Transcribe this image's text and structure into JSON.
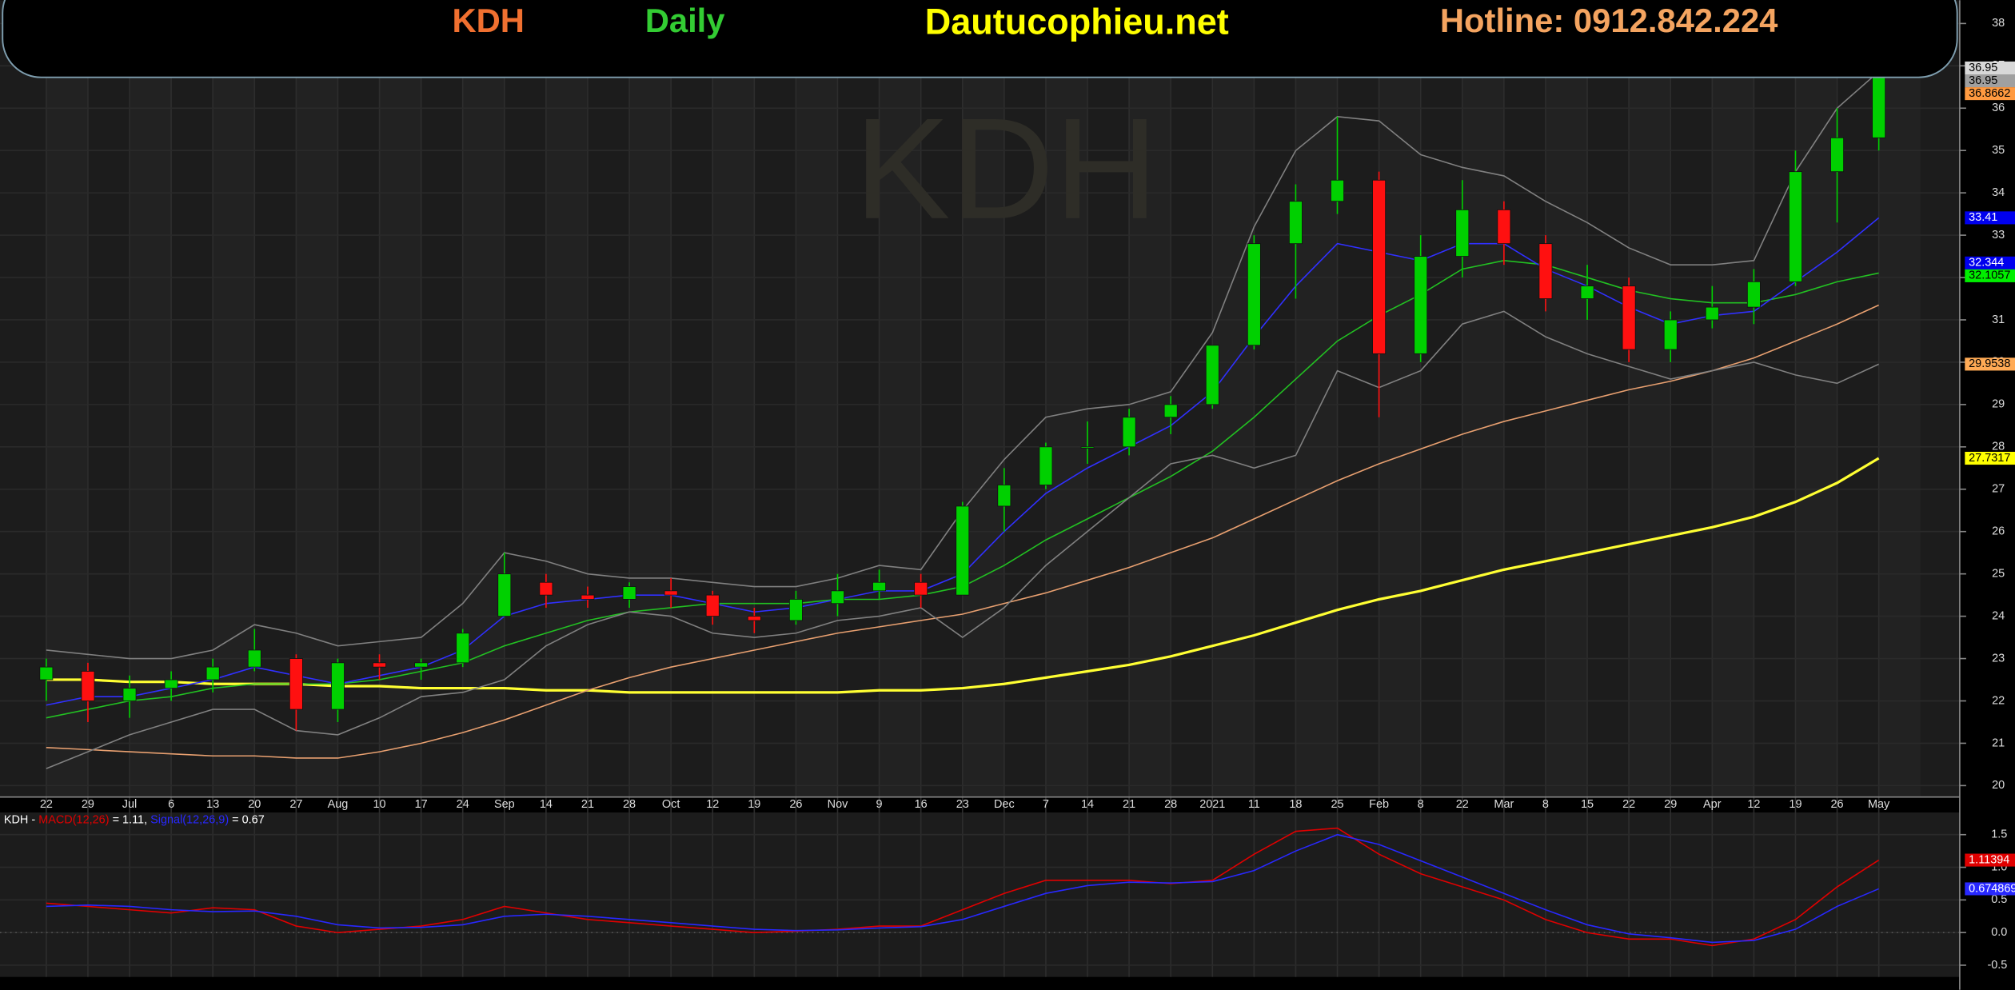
{
  "header": [
    "KDH",
    "Daily",
    "Dautucophieu.net",
    "Hotline: 0912.842.224"
  ],
  "chart_data": [
    {
      "type": "candlestick",
      "watermark": "KDH",
      "categories": [
        "22",
        "29",
        "Jul",
        "6",
        "13",
        "20",
        "27",
        "Aug",
        "10",
        "17",
        "24",
        "Sep",
        "14",
        "21",
        "28",
        "Oct",
        "12",
        "19",
        "26",
        "Nov",
        "9",
        "16",
        "23",
        "Dec",
        "7",
        "14",
        "21",
        "28",
        "2021",
        "11",
        "18",
        "25",
        "Feb",
        "8",
        "22",
        "Mar",
        "8",
        "15",
        "22",
        "29",
        "Apr",
        "12",
        "19",
        "26",
        "May"
      ],
      "open": [
        22.5,
        22.7,
        22.0,
        22.3,
        22.5,
        22.8,
        23.0,
        21.8,
        22.9,
        22.8,
        22.9,
        24.0,
        24.8,
        24.5,
        24.4,
        24.6,
        24.5,
        24.0,
        23.9,
        24.3,
        24.6,
        24.8,
        24.5,
        26.6,
        27.1,
        28.0,
        28.0,
        28.7,
        29.0,
        30.4,
        32.8,
        33.8,
        34.3,
        30.2,
        32.5,
        33.6,
        32.8,
        31.5,
        31.8,
        30.3,
        31.0,
        31.3,
        31.9,
        34.5,
        35.3
      ],
      "high": [
        23.0,
        22.9,
        22.6,
        22.7,
        23.0,
        23.7,
        23.1,
        23.0,
        23.1,
        23.0,
        23.7,
        25.5,
        25.0,
        24.7,
        24.8,
        24.9,
        24.6,
        24.2,
        24.6,
        25.0,
        25.1,
        25.0,
        26.7,
        27.5,
        28.1,
        28.6,
        28.9,
        29.2,
        30.4,
        33.0,
        34.2,
        35.8,
        34.5,
        33.0,
        34.3,
        33.8,
        33.0,
        32.3,
        32.0,
        31.2,
        31.8,
        32.2,
        35.0,
        36.0,
        37.5
      ],
      "low": [
        22.0,
        21.5,
        21.6,
        22.0,
        22.2,
        22.7,
        21.3,
        21.5,
        22.5,
        22.5,
        22.8,
        24.0,
        24.2,
        24.2,
        24.2,
        24.2,
        23.8,
        23.6,
        23.8,
        24.0,
        24.4,
        24.2,
        24.5,
        26.0,
        27.0,
        27.6,
        27.8,
        28.3,
        28.9,
        30.3,
        31.5,
        33.5,
        28.7,
        30.0,
        32.0,
        32.3,
        31.2,
        31.0,
        30.0,
        30.0,
        30.8,
        30.9,
        31.8,
        33.3,
        35.0
      ],
      "close": [
        22.8,
        22.0,
        22.3,
        22.5,
        22.8,
        23.2,
        21.8,
        22.9,
        22.8,
        22.9,
        23.6,
        25.0,
        24.5,
        24.4,
        24.7,
        24.5,
        24.0,
        23.9,
        24.4,
        24.6,
        24.8,
        24.5,
        26.6,
        27.1,
        28.0,
        28.0,
        28.7,
        29.0,
        30.4,
        32.8,
        33.8,
        34.3,
        30.2,
        32.5,
        33.6,
        32.8,
        31.5,
        31.8,
        30.3,
        31.0,
        31.3,
        31.9,
        34.5,
        35.3,
        36.95
      ],
      "up_color": "#00d000",
      "down_color": "#ff1010",
      "series": [
        {
          "color": "#ffff33",
          "values": [
            22.5,
            22.5,
            22.45,
            22.45,
            22.4,
            22.4,
            22.4,
            22.35,
            22.35,
            22.3,
            22.3,
            22.3,
            22.25,
            22.25,
            22.2,
            22.2,
            22.2,
            22.2,
            22.2,
            22.2,
            22.25,
            22.25,
            22.3,
            22.4,
            22.55,
            22.7,
            22.85,
            23.05,
            23.3,
            23.55,
            23.85,
            24.15,
            24.4,
            24.6,
            24.85,
            25.1,
            25.3,
            25.5,
            25.7,
            25.9,
            26.1,
            26.35,
            26.7,
            27.15,
            27.7317
          ]
        },
        {
          "color": "#e8a070",
          "values": [
            20.9,
            20.85,
            20.8,
            20.75,
            20.7,
            20.7,
            20.65,
            20.65,
            20.8,
            21.0,
            21.25,
            21.55,
            21.9,
            22.25,
            22.55,
            22.8,
            23.0,
            23.2,
            23.4,
            23.6,
            23.75,
            23.9,
            24.05,
            24.3,
            24.55,
            24.85,
            25.15,
            25.5,
            25.85,
            26.3,
            26.75,
            27.2,
            27.6,
            27.95,
            28.3,
            28.6,
            28.85,
            29.1,
            29.35,
            29.55,
            29.8,
            30.1,
            30.5,
            30.9,
            31.35
          ]
        },
        {
          "color": "#22c022",
          "values": [
            21.6,
            21.8,
            22.0,
            22.1,
            22.3,
            22.4,
            22.4,
            22.4,
            22.5,
            22.7,
            22.9,
            23.3,
            23.6,
            23.9,
            24.1,
            24.2,
            24.3,
            24.3,
            24.3,
            24.4,
            24.4,
            24.5,
            24.7,
            25.2,
            25.8,
            26.3,
            26.8,
            27.3,
            27.9,
            28.7,
            29.6,
            30.5,
            31.1,
            31.6,
            32.2,
            32.4,
            32.3,
            32.0,
            31.7,
            31.5,
            31.4,
            31.4,
            31.6,
            31.9,
            32.1057
          ]
        },
        {
          "color": "#3030ff",
          "values": [
            21.9,
            22.1,
            22.1,
            22.3,
            22.5,
            22.8,
            22.6,
            22.4,
            22.6,
            22.8,
            23.2,
            24.0,
            24.3,
            24.4,
            24.5,
            24.5,
            24.3,
            24.1,
            24.2,
            24.4,
            24.6,
            24.6,
            25.0,
            26.0,
            26.9,
            27.5,
            28.0,
            28.5,
            29.3,
            30.6,
            31.8,
            32.8,
            32.6,
            32.4,
            32.8,
            32.8,
            32.2,
            31.8,
            31.3,
            30.9,
            31.1,
            31.2,
            31.9,
            32.6,
            33.41
          ]
        },
        {
          "color": "#808080",
          "values": [
            23.2,
            23.1,
            23.0,
            23.0,
            23.2,
            23.8,
            23.6,
            23.3,
            23.4,
            23.5,
            24.3,
            25.5,
            25.3,
            25.0,
            24.9,
            24.9,
            24.8,
            24.7,
            24.7,
            24.9,
            25.2,
            25.1,
            26.5,
            27.7,
            28.7,
            28.9,
            29.0,
            29.3,
            30.7,
            33.2,
            35.0,
            35.8,
            35.7,
            34.9,
            34.6,
            34.4,
            33.8,
            33.3,
            32.7,
            32.3,
            32.3,
            32.4,
            34.5,
            36.0,
            36.8662
          ]
        },
        {
          "color": "#808080",
          "values": [
            20.4,
            20.8,
            21.2,
            21.5,
            21.8,
            21.8,
            21.3,
            21.2,
            21.6,
            22.1,
            22.2,
            22.5,
            23.3,
            23.8,
            24.1,
            24.0,
            23.6,
            23.5,
            23.6,
            23.9,
            24.0,
            24.2,
            23.5,
            24.2,
            25.2,
            26.0,
            26.8,
            27.6,
            27.8,
            27.5,
            27.8,
            29.8,
            29.4,
            29.8,
            30.9,
            31.2,
            30.6,
            30.2,
            29.9,
            29.6,
            29.8,
            30.0,
            29.7,
            29.5,
            29.9538
          ]
        }
      ],
      "price_labels": [
        {
          "value": 36.95,
          "color": "#d8d8d8"
        },
        {
          "value": 36.95,
          "color": "#a0a0a0"
        },
        {
          "value": 36.8662,
          "color": "#ff9a40"
        },
        {
          "value": 33.41,
          "color": "#0000ee"
        },
        {
          "value": 32.344,
          "color": "#0000ee"
        },
        {
          "value": 32.1057,
          "color": "#00ee00"
        },
        {
          "value": 29.9538,
          "color": "#ffaa55"
        },
        {
          "value": 27.7317,
          "color": "#ffff00"
        }
      ],
      "ylim": [
        19.73,
        38.55
      ],
      "yticks": [
        20,
        21,
        22,
        23,
        24,
        25,
        26,
        27,
        28,
        29,
        30,
        31,
        32,
        33,
        34,
        35,
        36,
        37,
        38
      ],
      "grid": true
    },
    {
      "type": "line",
      "title": "KDH -",
      "series": [
        {
          "name": "MACD(12,26)",
          "color": "#e00000",
          "values": [
            0.45,
            0.4,
            0.35,
            0.3,
            0.38,
            0.35,
            0.1,
            0.0,
            0.05,
            0.1,
            0.2,
            0.4,
            0.3,
            0.2,
            0.15,
            0.1,
            0.05,
            0.0,
            0.02,
            0.05,
            0.1,
            0.1,
            0.35,
            0.6,
            0.8,
            0.8,
            0.8,
            0.75,
            0.8,
            1.2,
            1.55,
            1.6,
            1.2,
            0.9,
            0.7,
            0.5,
            0.2,
            0.0,
            -0.1,
            -0.1,
            -0.2,
            -0.1,
            0.2,
            0.7,
            1.11
          ]
        },
        {
          "name": "Signal(12,26,9)",
          "color": "#2828ff",
          "values": [
            0.4,
            0.42,
            0.4,
            0.35,
            0.32,
            0.33,
            0.25,
            0.12,
            0.07,
            0.08,
            0.12,
            0.25,
            0.28,
            0.25,
            0.2,
            0.15,
            0.1,
            0.05,
            0.03,
            0.04,
            0.07,
            0.09,
            0.2,
            0.4,
            0.6,
            0.72,
            0.77,
            0.76,
            0.78,
            0.95,
            1.25,
            1.5,
            1.35,
            1.1,
            0.85,
            0.6,
            0.35,
            0.12,
            -0.02,
            -0.08,
            -0.15,
            -0.12,
            0.05,
            0.4,
            0.67
          ]
        }
      ],
      "legend_values": [
        "= 1.11,",
        "= 0.67"
      ],
      "last_labels": [
        1.11394,
        0.674869
      ],
      "ylim": [
        -0.68,
        1.84
      ],
      "yticks": [
        -0.5,
        {
          "value": 0,
          "label": "0.0"
        },
        0.5,
        {
          "value": 1,
          "label": "1.0"
        },
        1.5
      ]
    }
  ]
}
